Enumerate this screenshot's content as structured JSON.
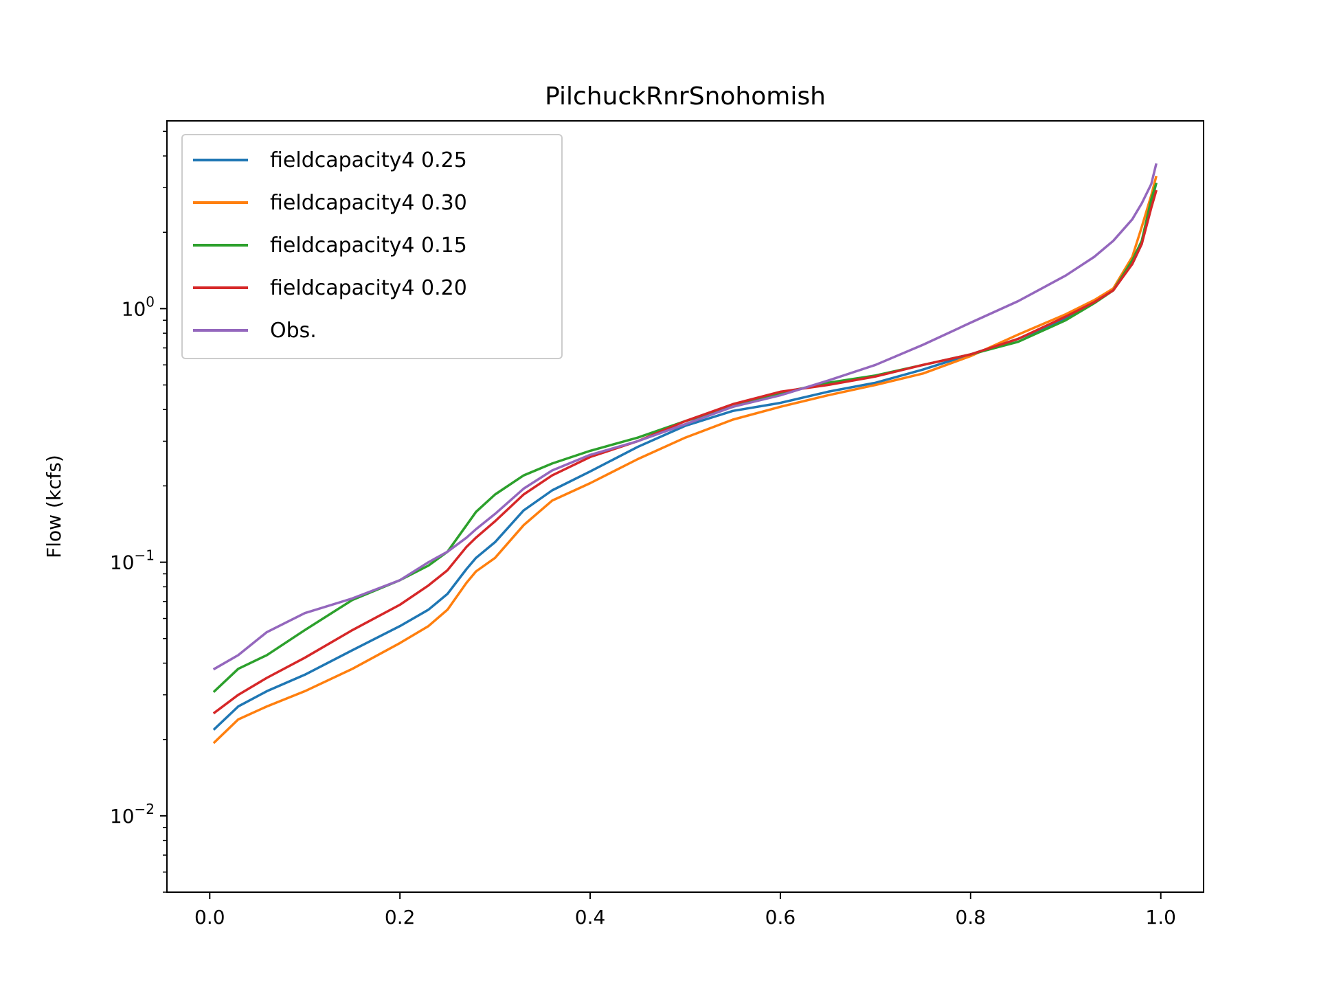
{
  "chart_data": {
    "type": "line",
    "title": "PilchuckRnrSnohomish",
    "xlabel": "",
    "ylabel": "Flow (kcfs)",
    "yscale": "log",
    "xlim": [
      -0.045,
      1.045
    ],
    "ylim": [
      0.005,
      5.5
    ],
    "xticks": [
      0.0,
      0.2,
      0.4,
      0.6,
      0.8,
      1.0
    ],
    "xtick_labels": [
      "0.0",
      "0.2",
      "0.4",
      "0.6",
      "0.8",
      "1.0"
    ],
    "yticks": [
      {
        "value": 1,
        "base": "10",
        "exp": "0"
      },
      {
        "value": 0.1,
        "base": "10",
        "exp": "−1"
      },
      {
        "value": 0.01,
        "base": "10",
        "exp": "−2"
      }
    ],
    "grid": false,
    "legend_position": "upper-left",
    "x": [
      0.005,
      0.03,
      0.06,
      0.1,
      0.15,
      0.2,
      0.23,
      0.25,
      0.27,
      0.28,
      0.3,
      0.33,
      0.36,
      0.4,
      0.45,
      0.5,
      0.55,
      0.6,
      0.65,
      0.7,
      0.75,
      0.8,
      0.85,
      0.9,
      0.93,
      0.95,
      0.97,
      0.98,
      0.99,
      0.995
    ],
    "series": [
      {
        "name": "fieldcapacity4 0.25",
        "color": "#1f77b4",
        "values": [
          0.022,
          0.027,
          0.031,
          0.036,
          0.045,
          0.056,
          0.065,
          0.075,
          0.094,
          0.104,
          0.12,
          0.16,
          0.192,
          0.228,
          0.285,
          0.345,
          0.395,
          0.425,
          0.47,
          0.51,
          0.575,
          0.66,
          0.76,
          0.91,
          1.07,
          1.2,
          1.5,
          1.8,
          2.6,
          3.1
        ]
      },
      {
        "name": "fieldcapacity4 0.30",
        "color": "#ff7f0e",
        "values": [
          0.0195,
          0.024,
          0.027,
          0.031,
          0.038,
          0.048,
          0.056,
          0.065,
          0.083,
          0.092,
          0.104,
          0.14,
          0.175,
          0.205,
          0.255,
          0.31,
          0.365,
          0.41,
          0.455,
          0.5,
          0.555,
          0.65,
          0.79,
          0.95,
          1.08,
          1.2,
          1.6,
          2.1,
          2.8,
          3.3
        ]
      },
      {
        "name": "fieldcapacity4 0.15",
        "color": "#2ca02c",
        "values": [
          0.031,
          0.038,
          0.043,
          0.054,
          0.071,
          0.085,
          0.097,
          0.11,
          0.14,
          0.158,
          0.185,
          0.22,
          0.245,
          0.275,
          0.31,
          0.36,
          0.41,
          0.465,
          0.51,
          0.545,
          0.6,
          0.66,
          0.74,
          0.9,
          1.05,
          1.18,
          1.55,
          1.85,
          2.7,
          3.1
        ]
      },
      {
        "name": "fieldcapacity4 0.20",
        "color": "#d62728",
        "values": [
          0.0255,
          0.03,
          0.035,
          0.042,
          0.054,
          0.068,
          0.081,
          0.093,
          0.115,
          0.125,
          0.145,
          0.185,
          0.22,
          0.26,
          0.3,
          0.36,
          0.42,
          0.47,
          0.5,
          0.54,
          0.6,
          0.66,
          0.76,
          0.93,
          1.06,
          1.18,
          1.5,
          1.8,
          2.5,
          2.9
        ]
      },
      {
        "name": "Obs.",
        "color": "#9467bd",
        "values": [
          0.038,
          0.043,
          0.053,
          0.063,
          0.072,
          0.085,
          0.1,
          0.11,
          0.125,
          0.135,
          0.155,
          0.195,
          0.23,
          0.265,
          0.3,
          0.35,
          0.41,
          0.455,
          0.52,
          0.6,
          0.72,
          0.88,
          1.07,
          1.35,
          1.6,
          1.85,
          2.25,
          2.6,
          3.1,
          3.7
        ]
      }
    ]
  }
}
